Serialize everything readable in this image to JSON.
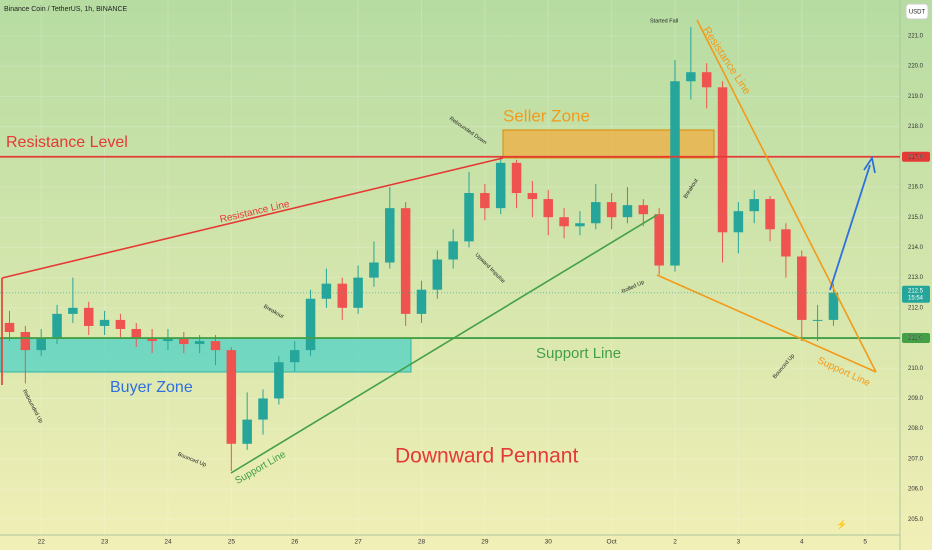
{
  "header": {
    "symbol": "Binance Coin / TetherUS, 1h, BINANCE",
    "currency": "USDT"
  },
  "chart_data": {
    "type": "candlestick",
    "x": [
      -0.5,
      -0.25,
      0,
      0.25,
      0.5,
      0.75,
      1,
      1.25,
      1.5,
      1.75,
      2,
      2.25,
      2.5,
      2.75,
      3,
      3.25,
      3.5,
      3.75,
      4,
      4.25,
      4.5,
      4.75,
      5,
      5.25,
      5.5,
      5.75,
      6,
      6.25,
      6.5,
      6.75,
      7,
      7.25,
      7.5,
      7.75,
      8,
      8.25,
      8.5,
      8.75,
      9,
      9.25,
      9.5,
      9.75,
      10,
      10.25,
      10.5,
      10.75,
      11,
      11.25,
      11.5,
      11.75,
      12,
      12.25,
      12.5
    ],
    "open": [
      211.5,
      211.2,
      210.6,
      211.0,
      211.8,
      212.0,
      211.4,
      211.6,
      211.3,
      211.0,
      210.9,
      211.0,
      210.8,
      210.9,
      210.6,
      207.5,
      208.3,
      209.0,
      210.2,
      210.6,
      212.3,
      212.8,
      212.0,
      213.0,
      213.5,
      215.3,
      211.8,
      212.6,
      213.6,
      214.2,
      215.8,
      215.3,
      216.8,
      215.8,
      215.6,
      215.0,
      214.7,
      214.8,
      215.5,
      215.0,
      215.4,
      215.1,
      213.4,
      219.5,
      219.8,
      219.3,
      214.5,
      215.2,
      215.6,
      214.6,
      213.7,
      211.6,
      211.6
    ],
    "high": [
      211.9,
      211.4,
      211.3,
      212.1,
      213.0,
      212.2,
      211.9,
      211.8,
      211.5,
      211.3,
      211.3,
      211.2,
      211.1,
      211.1,
      210.7,
      209.2,
      209.3,
      210.4,
      210.9,
      212.6,
      213.3,
      213.0,
      213.4,
      214.2,
      216.0,
      215.5,
      212.9,
      213.9,
      214.6,
      216.5,
      216.1,
      217.0,
      216.9,
      216.2,
      215.9,
      215.3,
      215.2,
      216.1,
      215.8,
      216.0,
      215.6,
      215.3,
      220.2,
      221.3,
      220.1,
      219.5,
      215.5,
      215.9,
      215.7,
      214.8,
      213.9,
      212.1,
      212.8
    ],
    "low": [
      210.9,
      209.5,
      210.4,
      210.8,
      211.5,
      211.1,
      211.1,
      211.0,
      210.7,
      210.5,
      210.6,
      210.5,
      210.5,
      210.1,
      206.6,
      207.3,
      207.8,
      208.8,
      209.9,
      210.4,
      212.0,
      211.6,
      211.8,
      212.7,
      213.3,
      211.4,
      211.5,
      212.3,
      213.3,
      214.0,
      214.9,
      215.1,
      215.3,
      215.0,
      214.4,
      214.3,
      214.4,
      214.6,
      214.6,
      214.8,
      214.7,
      213.1,
      213.2,
      218.9,
      218.6,
      213.5,
      213.8,
      214.8,
      214.2,
      213.0,
      210.9,
      210.9,
      211.4
    ],
    "close": [
      211.2,
      210.6,
      211.0,
      211.8,
      212.0,
      211.4,
      211.6,
      211.3,
      211.0,
      210.9,
      211.0,
      210.8,
      210.9,
      210.6,
      207.5,
      208.3,
      209.0,
      210.2,
      210.6,
      212.3,
      212.8,
      212.0,
      213.0,
      213.5,
      215.3,
      211.8,
      212.6,
      213.6,
      214.2,
      215.8,
      215.3,
      216.8,
      215.8,
      215.6,
      215.0,
      214.7,
      214.8,
      215.5,
      215.0,
      215.4,
      215.1,
      213.4,
      219.5,
      219.8,
      219.3,
      214.5,
      215.2,
      215.6,
      214.6,
      213.7,
      211.6,
      211.6,
      212.5
    ],
    "up_color": "#26a69a",
    "down_color": "#ef5350",
    "xlim": [
      -0.65,
      13.55
    ],
    "xticks": [
      {
        "value": 0,
        "label": "22"
      },
      {
        "value": 1,
        "label": "23"
      },
      {
        "value": 2,
        "label": "24"
      },
      {
        "value": 3,
        "label": "25"
      },
      {
        "value": 4,
        "label": "26"
      },
      {
        "value": 5,
        "label": "27"
      },
      {
        "value": 6,
        "label": "28"
      },
      {
        "value": 7,
        "label": "29"
      },
      {
        "value": 8,
        "label": "30"
      },
      {
        "value": 9,
        "label": "Oct"
      },
      {
        "value": 10,
        "label": "2"
      },
      {
        "value": 11,
        "label": "3"
      },
      {
        "value": 12,
        "label": "4"
      },
      {
        "value": 13,
        "label": "5"
      }
    ],
    "ylim": [
      204.48,
      222.19
    ],
    "yticks": [
      {
        "value": 205,
        "label": "205.0"
      },
      {
        "value": 206,
        "label": "206.0"
      },
      {
        "value": 207,
        "label": "207.0"
      },
      {
        "value": 208,
        "label": "208.0"
      },
      {
        "value": 209,
        "label": "209.0"
      },
      {
        "value": 210,
        "label": "210.0"
      },
      {
        "value": 211,
        "label": "211.0"
      },
      {
        "value": 212,
        "label": "212.0"
      },
      {
        "value": 213,
        "label": "213.0"
      },
      {
        "value": 214,
        "label": "214.0"
      },
      {
        "value": 215,
        "label": "215.0"
      },
      {
        "value": 216,
        "label": "216.0"
      },
      {
        "value": 217,
        "label": "217.0"
      },
      {
        "value": 218,
        "label": "218.0"
      },
      {
        "value": 219,
        "label": "219.0"
      },
      {
        "value": 220,
        "label": "220.0"
      },
      {
        "value": 221,
        "label": "221.0"
      }
    ],
    "grid": true,
    "levels": [
      {
        "value": 217,
        "label": "217.0",
        "name": "Resistance Level",
        "color": "#e53935"
      },
      {
        "value": 211,
        "label": "211.0",
        "name": "Support Line",
        "color": "#43a047"
      }
    ],
    "current_price": 212.5,
    "countdown": "15:54",
    "annotations": [
      "Seller Zone",
      "Buyer Zone",
      "Downward Pennant",
      "Resistance Line",
      "Resistance Line",
      "Support Line",
      "Support Line",
      "Rebounded Up",
      "Bounced Up",
      "Breakout",
      "Rebounded Down",
      "Upward Impulse",
      "Rolled Up",
      "Started Fall",
      "Breakout",
      "Bounced Up"
    ]
  }
}
